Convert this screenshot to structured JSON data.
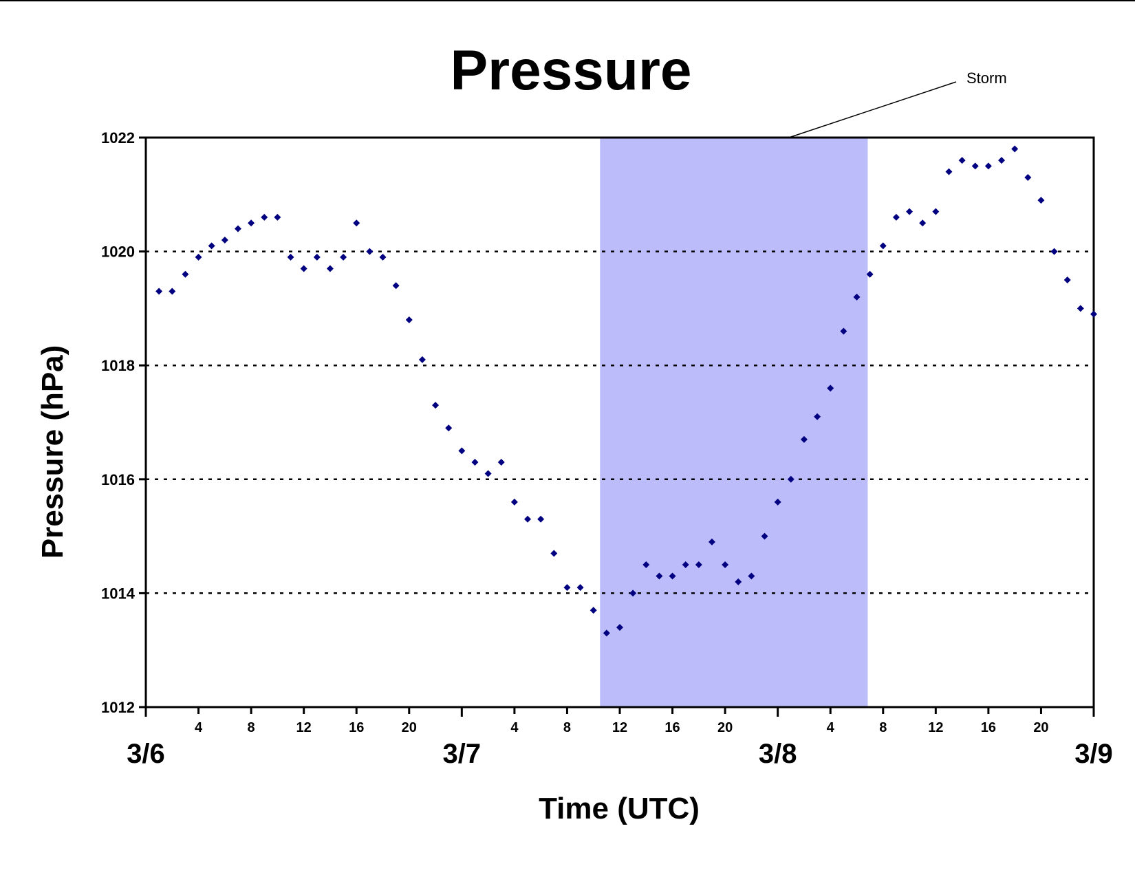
{
  "chart_data": {
    "type": "scatter",
    "title": "Pressure",
    "xlabel": "Time (UTC)",
    "ylabel": "Pressure (hPa)",
    "ylim": [
      1012,
      1022
    ],
    "yticks": [
      1012,
      1014,
      1016,
      1018,
      1020,
      1022
    ],
    "grid": "horizontal dotted lines at 1014, 1016, 1018, 1020",
    "colors": {
      "points": "#000080",
      "storm_band": "#bcbcfb",
      "grid": "#000000"
    },
    "day_labels": [
      {
        "label": "3/6",
        "date": "2008-03-06 00:00"
      },
      {
        "label": "3/7",
        "date": "2008-03-07 00:00"
      },
      {
        "label": "3/8",
        "date": "2008-03-08 00:00"
      },
      {
        "label": "3/9",
        "date": "2008-03-09 00:00"
      }
    ],
    "hour_tick_labels": [
      "4",
      "8",
      "12",
      "16",
      "20"
    ],
    "annotation": {
      "text": "Storm",
      "start": "2008-03-07 10:30",
      "end": "2008-03-08 06:50"
    },
    "series": [
      {
        "points": [
          [
            "2008-03-06 01:00",
            1019.3
          ],
          [
            "2008-03-06 02:00",
            1019.3
          ],
          [
            "2008-03-06 03:00",
            1019.6
          ],
          [
            "2008-03-06 04:00",
            1019.9
          ],
          [
            "2008-03-06 05:00",
            1020.1
          ],
          [
            "2008-03-06 06:00",
            1020.2
          ],
          [
            "2008-03-06 07:00",
            1020.4
          ],
          [
            "2008-03-06 08:00",
            1020.5
          ],
          [
            "2008-03-06 09:00",
            1020.6
          ],
          [
            "2008-03-06 10:00",
            1020.6
          ],
          [
            "2008-03-06 11:00",
            1019.9
          ],
          [
            "2008-03-06 12:00",
            1019.7
          ],
          [
            "2008-03-06 13:00",
            1019.9
          ],
          [
            "2008-03-06 14:00",
            1019.7
          ],
          [
            "2008-03-06 15:00",
            1019.9
          ],
          [
            "2008-03-06 16:00",
            1020.5
          ],
          [
            "2008-03-06 17:00",
            1020.0
          ],
          [
            "2008-03-06 18:00",
            1019.9
          ],
          [
            "2008-03-06 19:00",
            1019.4
          ],
          [
            "2008-03-06 20:00",
            1018.8
          ],
          [
            "2008-03-06 21:00",
            1018.1
          ],
          [
            "2008-03-06 22:00",
            1017.3
          ],
          [
            "2008-03-06 23:00",
            1016.9
          ],
          [
            "2008-03-07 00:00",
            1016.5
          ],
          [
            "2008-03-07 01:00",
            1016.3
          ],
          [
            "2008-03-07 02:00",
            1016.1
          ],
          [
            "2008-03-07 03:00",
            1016.3
          ],
          [
            "2008-03-07 04:00",
            1015.6
          ],
          [
            "2008-03-07 05:00",
            1015.3
          ],
          [
            "2008-03-07 06:00",
            1015.3
          ],
          [
            "2008-03-07 07:00",
            1014.7
          ],
          [
            "2008-03-07 08:00",
            1014.1
          ],
          [
            "2008-03-07 09:00",
            1014.1
          ],
          [
            "2008-03-07 10:00",
            1013.7
          ],
          [
            "2008-03-07 11:00",
            1013.3
          ],
          [
            "2008-03-07 12:00",
            1013.4
          ],
          [
            "2008-03-07 13:00",
            1014.0
          ],
          [
            "2008-03-07 14:00",
            1014.5
          ],
          [
            "2008-03-07 15:00",
            1014.3
          ],
          [
            "2008-03-07 16:00",
            1014.3
          ],
          [
            "2008-03-07 17:00",
            1014.5
          ],
          [
            "2008-03-07 18:00",
            1014.5
          ],
          [
            "2008-03-07 19:00",
            1014.9
          ],
          [
            "2008-03-07 20:00",
            1014.5
          ],
          [
            "2008-03-07 21:00",
            1014.2
          ],
          [
            "2008-03-07 22:00",
            1014.3
          ],
          [
            "2008-03-07 23:00",
            1015.0
          ],
          [
            "2008-03-08 00:00",
            1015.6
          ],
          [
            "2008-03-08 01:00",
            1016.0
          ],
          [
            "2008-03-08 02:00",
            1016.7
          ],
          [
            "2008-03-08 03:00",
            1017.1
          ],
          [
            "2008-03-08 04:00",
            1017.6
          ],
          [
            "2008-03-08 05:00",
            1018.6
          ],
          [
            "2008-03-08 06:00",
            1019.2
          ],
          [
            "2008-03-08 07:00",
            1019.6
          ],
          [
            "2008-03-08 08:00",
            1020.1
          ],
          [
            "2008-03-08 09:00",
            1020.6
          ],
          [
            "2008-03-08 10:00",
            1020.7
          ],
          [
            "2008-03-08 11:00",
            1020.5
          ],
          [
            "2008-03-08 12:00",
            1020.7
          ],
          [
            "2008-03-08 13:00",
            1021.4
          ],
          [
            "2008-03-08 14:00",
            1021.6
          ],
          [
            "2008-03-08 15:00",
            1021.5
          ],
          [
            "2008-03-08 16:00",
            1021.5
          ],
          [
            "2008-03-08 17:00",
            1021.6
          ],
          [
            "2008-03-08 18:00",
            1021.8
          ],
          [
            "2008-03-08 19:00",
            1021.3
          ],
          [
            "2008-03-08 20:00",
            1020.9
          ],
          [
            "2008-03-08 21:00",
            1020.0
          ],
          [
            "2008-03-08 22:00",
            1019.5
          ],
          [
            "2008-03-08 23:00",
            1019.0
          ],
          [
            "2008-03-09 00:00",
            1018.9
          ]
        ]
      }
    ]
  }
}
